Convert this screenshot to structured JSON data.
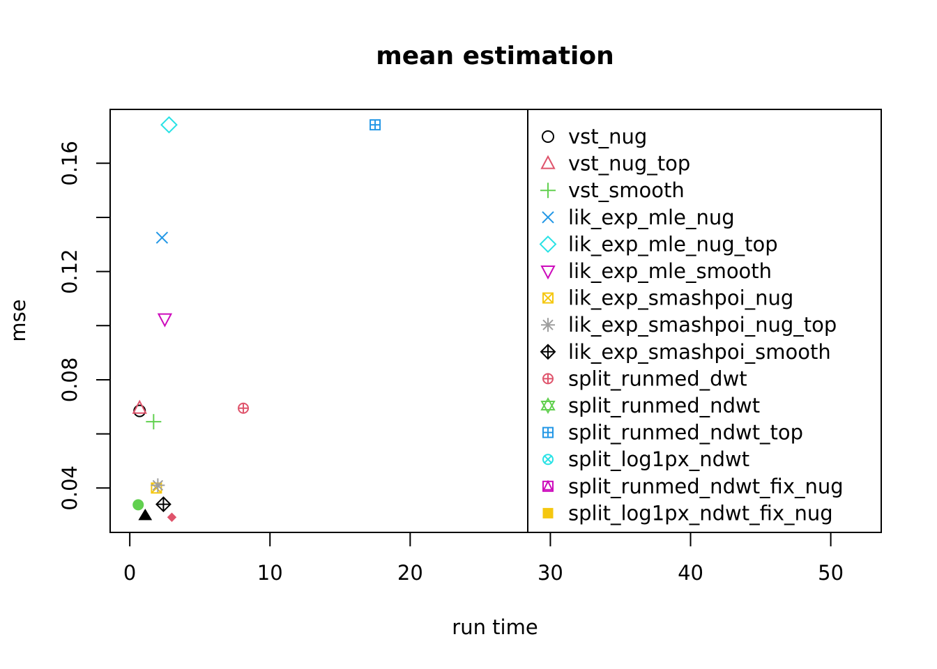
{
  "chart_data": {
    "type": "scatter",
    "title": "mean estimation",
    "xlabel": "run time",
    "ylabel": "mse",
    "xlim": [
      -1.4,
      53.6
    ],
    "ylim": [
      0.0236,
      0.1799
    ],
    "x_ticks": [
      "0",
      "10",
      "20",
      "30",
      "40",
      "50"
    ],
    "x_tick_values": [
      0,
      10,
      20,
      30,
      40,
      50
    ],
    "y_ticks": [
      "0.04",
      "0.08",
      "0.12",
      "0.16"
    ],
    "y_tick_values": [
      0.04,
      0.06,
      0.08,
      0.1,
      0.12,
      0.14,
      0.16
    ],
    "y_labeled_values": [
      0.04,
      0.08,
      0.12,
      0.16
    ],
    "grid": false,
    "legend_position": "right, overlapping plot, clipped at bottom",
    "series": [
      {
        "name": "vst_nug",
        "marker": "circle-open",
        "color": "#000000",
        "x": 0.7,
        "y": 0.0685
      },
      {
        "name": "vst_nug_top",
        "marker": "triangle-open",
        "color": "#DF536B",
        "x": 0.7,
        "y": 0.0695
      },
      {
        "name": "vst_smooth",
        "marker": "plus",
        "color": "#61D04F",
        "x": 1.7,
        "y": 0.0645
      },
      {
        "name": "lik_exp_mle_nug",
        "marker": "cross",
        "color": "#2297E6",
        "x": 2.3,
        "y": 0.1325
      },
      {
        "name": "lik_exp_mle_nug_top",
        "marker": "diamond-open",
        "color": "#28E2E5",
        "x": 2.8,
        "y": 0.1742
      },
      {
        "name": "lik_exp_mle_smooth",
        "marker": "triangle-down-open",
        "color": "#CD0BBC",
        "x": 2.5,
        "y": 0.1025
      },
      {
        "name": "lik_exp_smashpoi_nug",
        "marker": "square-cross",
        "color": "#F5C710",
        "x": 1.9,
        "y": 0.04
      },
      {
        "name": "lik_exp_smashpoi_nug_top",
        "marker": "asterisk",
        "color": "#9E9E9E",
        "x": 2.0,
        "y": 0.041
      },
      {
        "name": "lik_exp_smashpoi_smooth",
        "marker": "diamond-plus",
        "color": "#000000",
        "x": 2.4,
        "y": 0.034
      },
      {
        "name": "split_runmed_dwt",
        "marker": "circle-plus",
        "color": "#DF536B",
        "x": 8.1,
        "y": 0.0695
      },
      {
        "name": "split_runmed_ndwt",
        "marker": "star-of-david",
        "color": "#61D04F",
        "x": null,
        "y": null
      },
      {
        "name": "split_runmed_ndwt_top",
        "marker": "square-plus",
        "color": "#2297E6",
        "x": 17.5,
        "y": 0.1742
      },
      {
        "name": "split_log1px_ndwt",
        "marker": "circle-cross",
        "color": "#28E2E5",
        "x": null,
        "y": null
      },
      {
        "name": "split_runmed_ndwt_fix_nug",
        "marker": "square-triangle",
        "color": "#CD0BBC",
        "x": null,
        "y": null
      },
      {
        "name": "split_log1px_ndwt_fix_nug",
        "marker": "square-filled",
        "color": "#F5C710",
        "x": null,
        "y": null
      }
    ],
    "extra_points": [
      {
        "marker": "circle-filled",
        "color": "#61D04F",
        "x": 0.6,
        "y": 0.0338
      },
      {
        "marker": "triangle-filled",
        "color": "#000000",
        "x": 1.1,
        "y": 0.0298
      },
      {
        "marker": "diamond-filled",
        "color": "#DF536B",
        "x": 3.0,
        "y": 0.0292
      }
    ]
  }
}
